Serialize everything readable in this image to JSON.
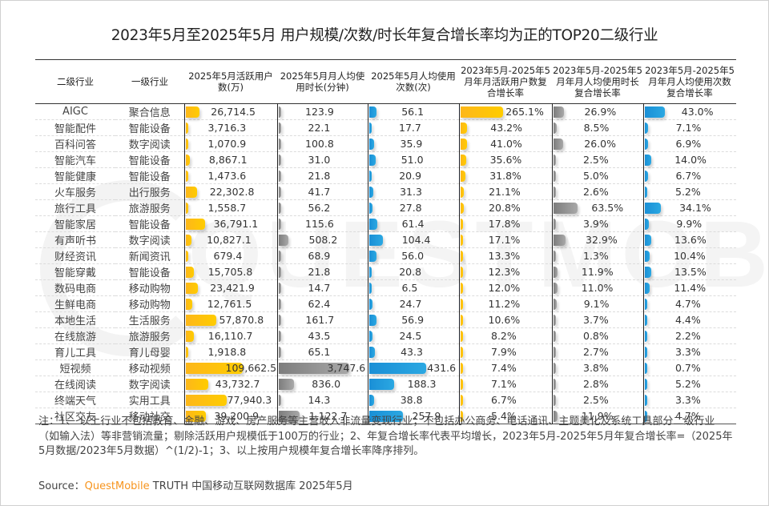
{
  "title": "2023年5月至2025年5月 用户规模/次数/时长年复合增长率均为正的TOP20二级行业",
  "watermark": {
    "text": "QUESTMOBILE"
  },
  "table": {
    "headers": [
      "二级行业",
      "一级行业",
      "2025年5月活跃用户数(万)",
      "2025年5月月人均使用时长(分钟)",
      "2025年5月人均使用次数(次)",
      "2023年5月-2025年5月年月活跃用户数复合增长率",
      "2023年5月-2025年5月年月人均使用时长复合增长率",
      "2023年5月-2025年5月年月人均使用次数复合增长率"
    ],
    "rows": [
      {
        "sub": "AIGC",
        "top": "聚合信息",
        "mau": "26,714.5",
        "dur": "123.9",
        "freq": "56.1",
        "mau_cagr": "265.1%",
        "dur_cagr": "26.9%",
        "freq_cagr": "43.0%"
      },
      {
        "sub": "智能配件",
        "top": "智能设备",
        "mau": "3,716.3",
        "dur": "22.1",
        "freq": "17.7",
        "mau_cagr": "43.2%",
        "dur_cagr": "8.5%",
        "freq_cagr": "7.1%"
      },
      {
        "sub": "百科问答",
        "top": "数字阅读",
        "mau": "1,070.9",
        "dur": "100.8",
        "freq": "35.9",
        "mau_cagr": "41.0%",
        "dur_cagr": "26.0%",
        "freq_cagr": "6.9%"
      },
      {
        "sub": "智能汽车",
        "top": "智能设备",
        "mau": "8,867.1",
        "dur": "31.0",
        "freq": "51.0",
        "mau_cagr": "35.6%",
        "dur_cagr": "2.5%",
        "freq_cagr": "14.0%"
      },
      {
        "sub": "智能健康",
        "top": "智能设备",
        "mau": "1,473.6",
        "dur": "21.8",
        "freq": "20.9",
        "mau_cagr": "31.8%",
        "dur_cagr": "5.0%",
        "freq_cagr": "6.7%"
      },
      {
        "sub": "火车服务",
        "top": "出行服务",
        "mau": "22,302.8",
        "dur": "41.7",
        "freq": "31.3",
        "mau_cagr": "21.1%",
        "dur_cagr": "2.6%",
        "freq_cagr": "5.2%"
      },
      {
        "sub": "旅行工具",
        "top": "旅游服务",
        "mau": "1,558.7",
        "dur": "56.2",
        "freq": "27.8",
        "mau_cagr": "20.8%",
        "dur_cagr": "63.5%",
        "freq_cagr": "34.1%"
      },
      {
        "sub": "智能家居",
        "top": "智能设备",
        "mau": "36,791.1",
        "dur": "115.6",
        "freq": "61.4",
        "mau_cagr": "17.8%",
        "dur_cagr": "3.9%",
        "freq_cagr": "9.9%"
      },
      {
        "sub": "有声听书",
        "top": "数字阅读",
        "mau": "10,827.1",
        "dur": "508.2",
        "freq": "104.4",
        "mau_cagr": "17.1%",
        "dur_cagr": "32.9%",
        "freq_cagr": "13.6%"
      },
      {
        "sub": "财经资讯",
        "top": "新闻资讯",
        "mau": "679.4",
        "dur": "68.9",
        "freq": "56.0",
        "mau_cagr": "13.3%",
        "dur_cagr": "1.3%",
        "freq_cagr": "10.4%"
      },
      {
        "sub": "智能穿戴",
        "top": "智能设备",
        "mau": "15,705.8",
        "dur": "21.8",
        "freq": "20.8",
        "mau_cagr": "12.3%",
        "dur_cagr": "11.9%",
        "freq_cagr": "13.5%"
      },
      {
        "sub": "数码电商",
        "top": "移动购物",
        "mau": "23,421.9",
        "dur": "14.7",
        "freq": "6.5",
        "mau_cagr": "12.0%",
        "dur_cagr": "11.0%",
        "freq_cagr": "11.4%"
      },
      {
        "sub": "生鲜电商",
        "top": "移动购物",
        "mau": "12,761.5",
        "dur": "62.4",
        "freq": "24.7",
        "mau_cagr": "11.2%",
        "dur_cagr": "9.1%",
        "freq_cagr": "4.7%"
      },
      {
        "sub": "本地生活",
        "top": "生活服务",
        "mau": "57,870.8",
        "dur": "161.7",
        "freq": "56.9",
        "mau_cagr": "10.6%",
        "dur_cagr": "3.7%",
        "freq_cagr": "4.4%"
      },
      {
        "sub": "在线旅游",
        "top": "旅游服务",
        "mau": "16,110.7",
        "dur": "43.5",
        "freq": "24.5",
        "mau_cagr": "8.2%",
        "dur_cagr": "0.8%",
        "freq_cagr": "2.2%"
      },
      {
        "sub": "育儿工具",
        "top": "育儿母婴",
        "mau": "1,918.8",
        "dur": "65.1",
        "freq": "43.3",
        "mau_cagr": "7.9%",
        "dur_cagr": "2.7%",
        "freq_cagr": "3.3%"
      },
      {
        "sub": "短视频",
        "top": "移动视频",
        "mau": "109,662.5",
        "dur": "3,747.6",
        "freq": "431.6",
        "mau_cagr": "7.4%",
        "dur_cagr": "3.8%",
        "freq_cagr": "0.7%"
      },
      {
        "sub": "在线阅读",
        "top": "数字阅读",
        "mau": "43,732.7",
        "dur": "836.0",
        "freq": "188.3",
        "mau_cagr": "7.1%",
        "dur_cagr": "2.8%",
        "freq_cagr": "5.2%"
      },
      {
        "sub": "终端天气",
        "top": "实用工具",
        "mau": "77,940.3",
        "dur": "14.3",
        "freq": "38.8",
        "mau_cagr": "6.7%",
        "dur_cagr": "2.5%",
        "freq_cagr": "3.3%"
      },
      {
        "sub": "社区交友",
        "top": "移动社交",
        "mau": "39,200.9",
        "dur": "1,122.7",
        "freq": "257.9",
        "mau_cagr": "5.4%",
        "dur_cagr": "11.9%",
        "freq_cagr": "4.7%"
      }
    ]
  },
  "colors": {
    "yellow": "#ffc20e",
    "gray": "#8c8c8c",
    "blue": "#1e9ad9",
    "brand": "#f7941d"
  },
  "note": "注：1、 以上行业不包括教育、金融、游戏、房产服务等主营收入非流量变现行业；不包括办公商务、电话通讯、主题美化及系统工具部分二级行业（如输入法）等非营销流量；剔除活跃用户规模低于100万的行业；2、年复合增长率代表平均增长，2023年5月-2025年5月年复合增长率=（2025年5月数据/2023年5月数据）^(1/2)-1；3、以上按用户规模年复合增长率降序排列。",
  "source": {
    "label": "Source：",
    "brand": "QuestMobile",
    "rest": " TRUTH 中国移动互联网数据库 2025年5月"
  },
  "chart_data": {
    "type": "table",
    "title": "2023年5月至2025年5月 用户规模/次数/时长年复合增长率均为正的TOP20二级行业",
    "columns": [
      "二级行业",
      "一级行业",
      "2025年5月活跃用户数(万)",
      "2025年5月月人均使用时长(分钟)",
      "2025年5月人均使用次数(次)",
      "月活跃用户数复合增长率(%)",
      "月人均使用时长复合增长率(%)",
      "月人均使用次数复合增长率(%)"
    ],
    "categories": [
      "AIGC",
      "智能配件",
      "百科问答",
      "智能汽车",
      "智能健康",
      "火车服务",
      "旅行工具",
      "智能家居",
      "有声听书",
      "财经资讯",
      "智能穿戴",
      "数码电商",
      "生鲜电商",
      "本地生活",
      "在线旅游",
      "育儿工具",
      "短视频",
      "在线阅读",
      "终端天气",
      "社区交友"
    ],
    "series": [
      {
        "name": "2025年5月活跃用户数(万)",
        "color": "#ffc20e",
        "values": [
          26714.5,
          3716.3,
          1070.9,
          8867.1,
          1473.6,
          22302.8,
          1558.7,
          36791.1,
          10827.1,
          679.4,
          15705.8,
          23421.9,
          12761.5,
          57870.8,
          16110.7,
          1918.8,
          109662.5,
          43732.7,
          77940.3,
          39200.9
        ]
      },
      {
        "name": "2025年5月月人均使用时长(分钟)",
        "color": "#8c8c8c",
        "values": [
          123.9,
          22.1,
          100.8,
          31.0,
          21.8,
          41.7,
          56.2,
          115.6,
          508.2,
          68.9,
          21.8,
          14.7,
          62.4,
          161.7,
          43.5,
          65.1,
          3747.6,
          836.0,
          14.3,
          1122.7
        ]
      },
      {
        "name": "2025年5月人均使用次数(次)",
        "color": "#1e9ad9",
        "values": [
          56.1,
          17.7,
          35.9,
          51.0,
          20.9,
          31.3,
          27.8,
          61.4,
          104.4,
          56.0,
          20.8,
          6.5,
          24.7,
          56.9,
          24.5,
          43.3,
          431.6,
          188.3,
          38.8,
          257.9
        ]
      },
      {
        "name": "月活跃用户数复合增长率(%)",
        "color": "#ffc20e",
        "values": [
          265.1,
          43.2,
          41.0,
          35.6,
          31.8,
          21.1,
          20.8,
          17.8,
          17.1,
          13.3,
          12.3,
          12.0,
          11.2,
          10.6,
          8.2,
          7.9,
          7.4,
          7.1,
          6.7,
          5.4
        ]
      },
      {
        "name": "月人均使用时长复合增长率(%)",
        "color": "#8c8c8c",
        "values": [
          26.9,
          8.5,
          26.0,
          2.5,
          5.0,
          2.6,
          63.5,
          3.9,
          32.9,
          1.3,
          11.9,
          11.0,
          9.1,
          3.7,
          0.8,
          2.7,
          3.8,
          2.8,
          2.5,
          11.9
        ]
      },
      {
        "name": "月人均使用次数复合增长率(%)",
        "color": "#1e9ad9",
        "values": [
          43.0,
          7.1,
          6.9,
          14.0,
          6.7,
          5.2,
          34.1,
          9.9,
          13.6,
          10.4,
          13.5,
          11.4,
          4.7,
          4.4,
          2.2,
          3.3,
          0.7,
          5.2,
          3.3,
          4.7
        ]
      }
    ]
  }
}
